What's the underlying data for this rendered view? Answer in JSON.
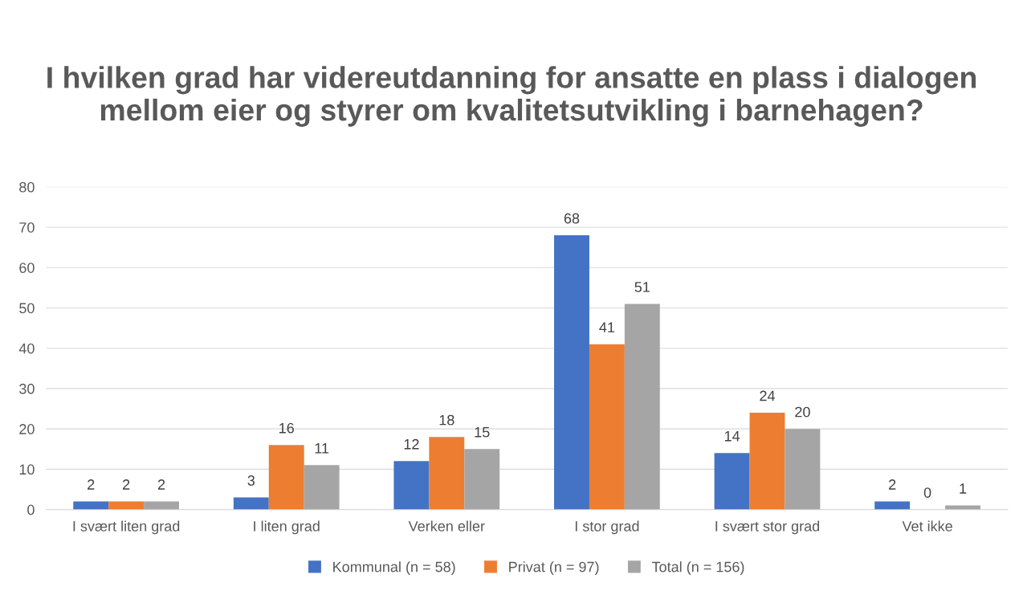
{
  "chart_data": {
    "type": "bar",
    "title": "I hvilken grad har videreutdanning for ansatte en plass i dialogen mellom eier og styrer om kvalitetsutvikling i barnehagen?",
    "categories": [
      "I svært liten grad",
      "I liten grad",
      "Verken eller",
      "I stor grad",
      "I svært stor grad",
      "Vet ikke"
    ],
    "series": [
      {
        "name": "Kommunal (n = 58)",
        "color": "#4472c4",
        "values": [
          2,
          3,
          12,
          68,
          14,
          2
        ]
      },
      {
        "name": "Privat (n = 97)",
        "color": "#ed7d31",
        "values": [
          2,
          16,
          18,
          41,
          24,
          0
        ]
      },
      {
        "name": "Total (n = 156)",
        "color": "#a5a5a5",
        "values": [
          2,
          11,
          15,
          51,
          20,
          1
        ]
      }
    ],
    "ylim": [
      0,
      80
    ],
    "yticks": [
      0,
      10,
      20,
      30,
      40,
      50,
      60,
      70,
      80
    ],
    "grid": "y",
    "legend": "bottom",
    "data_labels": true
  }
}
